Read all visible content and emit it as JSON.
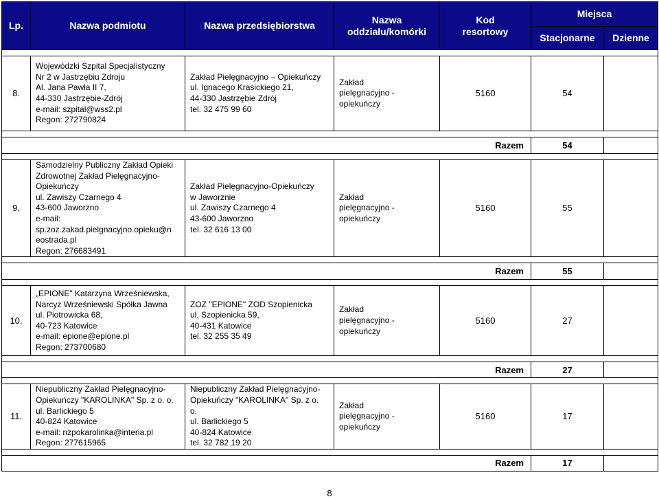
{
  "header": {
    "lp": "Lp.",
    "podmiot": "Nazwa podmiotu",
    "przedsiebiorstwo": "Nazwa przedsiębiorstwa",
    "oddzial": [
      "Nazwa",
      "oddziału/komórki"
    ],
    "kod": [
      "Kod",
      "resortowy"
    ],
    "miejsca": "Miejsca",
    "stacjonarne": "Stacjonarne",
    "dzienne": "Dzienne"
  },
  "rows": [
    {
      "lp": "8.",
      "podmiot": [
        "Wojewódzki Szpital Specjalistyczny",
        "Nr 2 w Jastrzębiu Zdroju",
        "Al. Jana Pawła II 7,",
        "44-330 Jastrzębie-Zdrój",
        "e-mail:  szpital@wss2.pl",
        "Regon: 272790824"
      ],
      "przedsiebiorstwo": [
        "Zakład Pielęgnacyjno – Opiekuńczy",
        "ul. Ignacego Krasickiego 21,",
        "44-330 Jastrzębie Zdrój",
        "tel.  32 475 99 60"
      ],
      "oddzial": [
        "Zakład",
        "pielęgnacyjno -",
        "opiekuńczy"
      ],
      "kod": "5160",
      "stacjonarne": "54",
      "dzienne": "",
      "razem_label": "Razem",
      "razem_value": "54"
    },
    {
      "lp": "9.",
      "podmiot": [
        "Samodzielny Publiczny Zakład Opieki",
        "Zdrowotnej Zakład Pielęgnacyjno-",
        "Opiekuńczy",
        "ul. Zawiszy Czarnego 4",
        "43-600 Jaworzno",
        "e-mail:",
        "sp.zoz.zakad.pielgnacyjno.opieku@n",
        "eostrada.pl",
        "Regon: 276683491"
      ],
      "przedsiebiorstwo": [
        "Zakład Pielęgnacyjno-Opiekuńczy",
        "w Jaworznie",
        "ul. Zawiszy Czarnego 4",
        "43-600 Jaworzno",
        "tel. 32 616 13 00"
      ],
      "oddzial": [
        "Zakład",
        "pielęgnacyjno -",
        "opiekuńczy"
      ],
      "kod": "5160",
      "stacjonarne": "55",
      "dzienne": "",
      "razem_label": "Razem",
      "razem_value": "55"
    },
    {
      "lp": "10.",
      "podmiot": [
        "„EPIONE\" Katarzyna Wrześniewska,",
        "Narcyz Wrześniewski Spółka Jawna",
        "ul. Piotrowicka 68,",
        "40-723 Katowice",
        "e-mail:  epione@epione.pl",
        "Regon: 273700680"
      ],
      "przedsiebiorstwo": [
        "ZOZ \"EPIONE\" ZOD Szopienicka",
        "ul. Szopienicka 59,",
        "40-431 Katowice",
        "tel. 32 255 35 49"
      ],
      "oddzial": [
        "Zakład",
        "pielęgnacyjno -",
        "opiekuńczy"
      ],
      "kod": "5160",
      "stacjonarne": "27",
      "dzienne": "",
      "razem_label": "Razem",
      "razem_value": "27"
    },
    {
      "lp": "11.",
      "podmiot": [
        "Niepubliczny Zakład Pielęgnacyjno-",
        "Opiekuńczy \"KAROLINKA\" Sp. z o. o.",
        "ul. Barlickiego 5",
        "40-824 Katowice",
        "e-mail: nzpokarolinka@interia.pl",
        "Regon: 277615965"
      ],
      "przedsiebiorstwo": [
        "Niepubliczny Zakład Pielęgnacyjno-",
        "Opiekuńczy \"KAROLINKA\" Sp. z o.",
        "o.",
        "ul. Barlickiego 5",
        "40-824 Katowice",
        "tel. 32 782 19 20"
      ],
      "oddzial": [
        "Zakład",
        "pielęgnacyjno -",
        "opiekuńczy"
      ],
      "kod": "5160",
      "stacjonarne": "17",
      "dzienne": "",
      "razem_label": "Razem",
      "razem_value": "17"
    }
  ],
  "page_number": "8"
}
